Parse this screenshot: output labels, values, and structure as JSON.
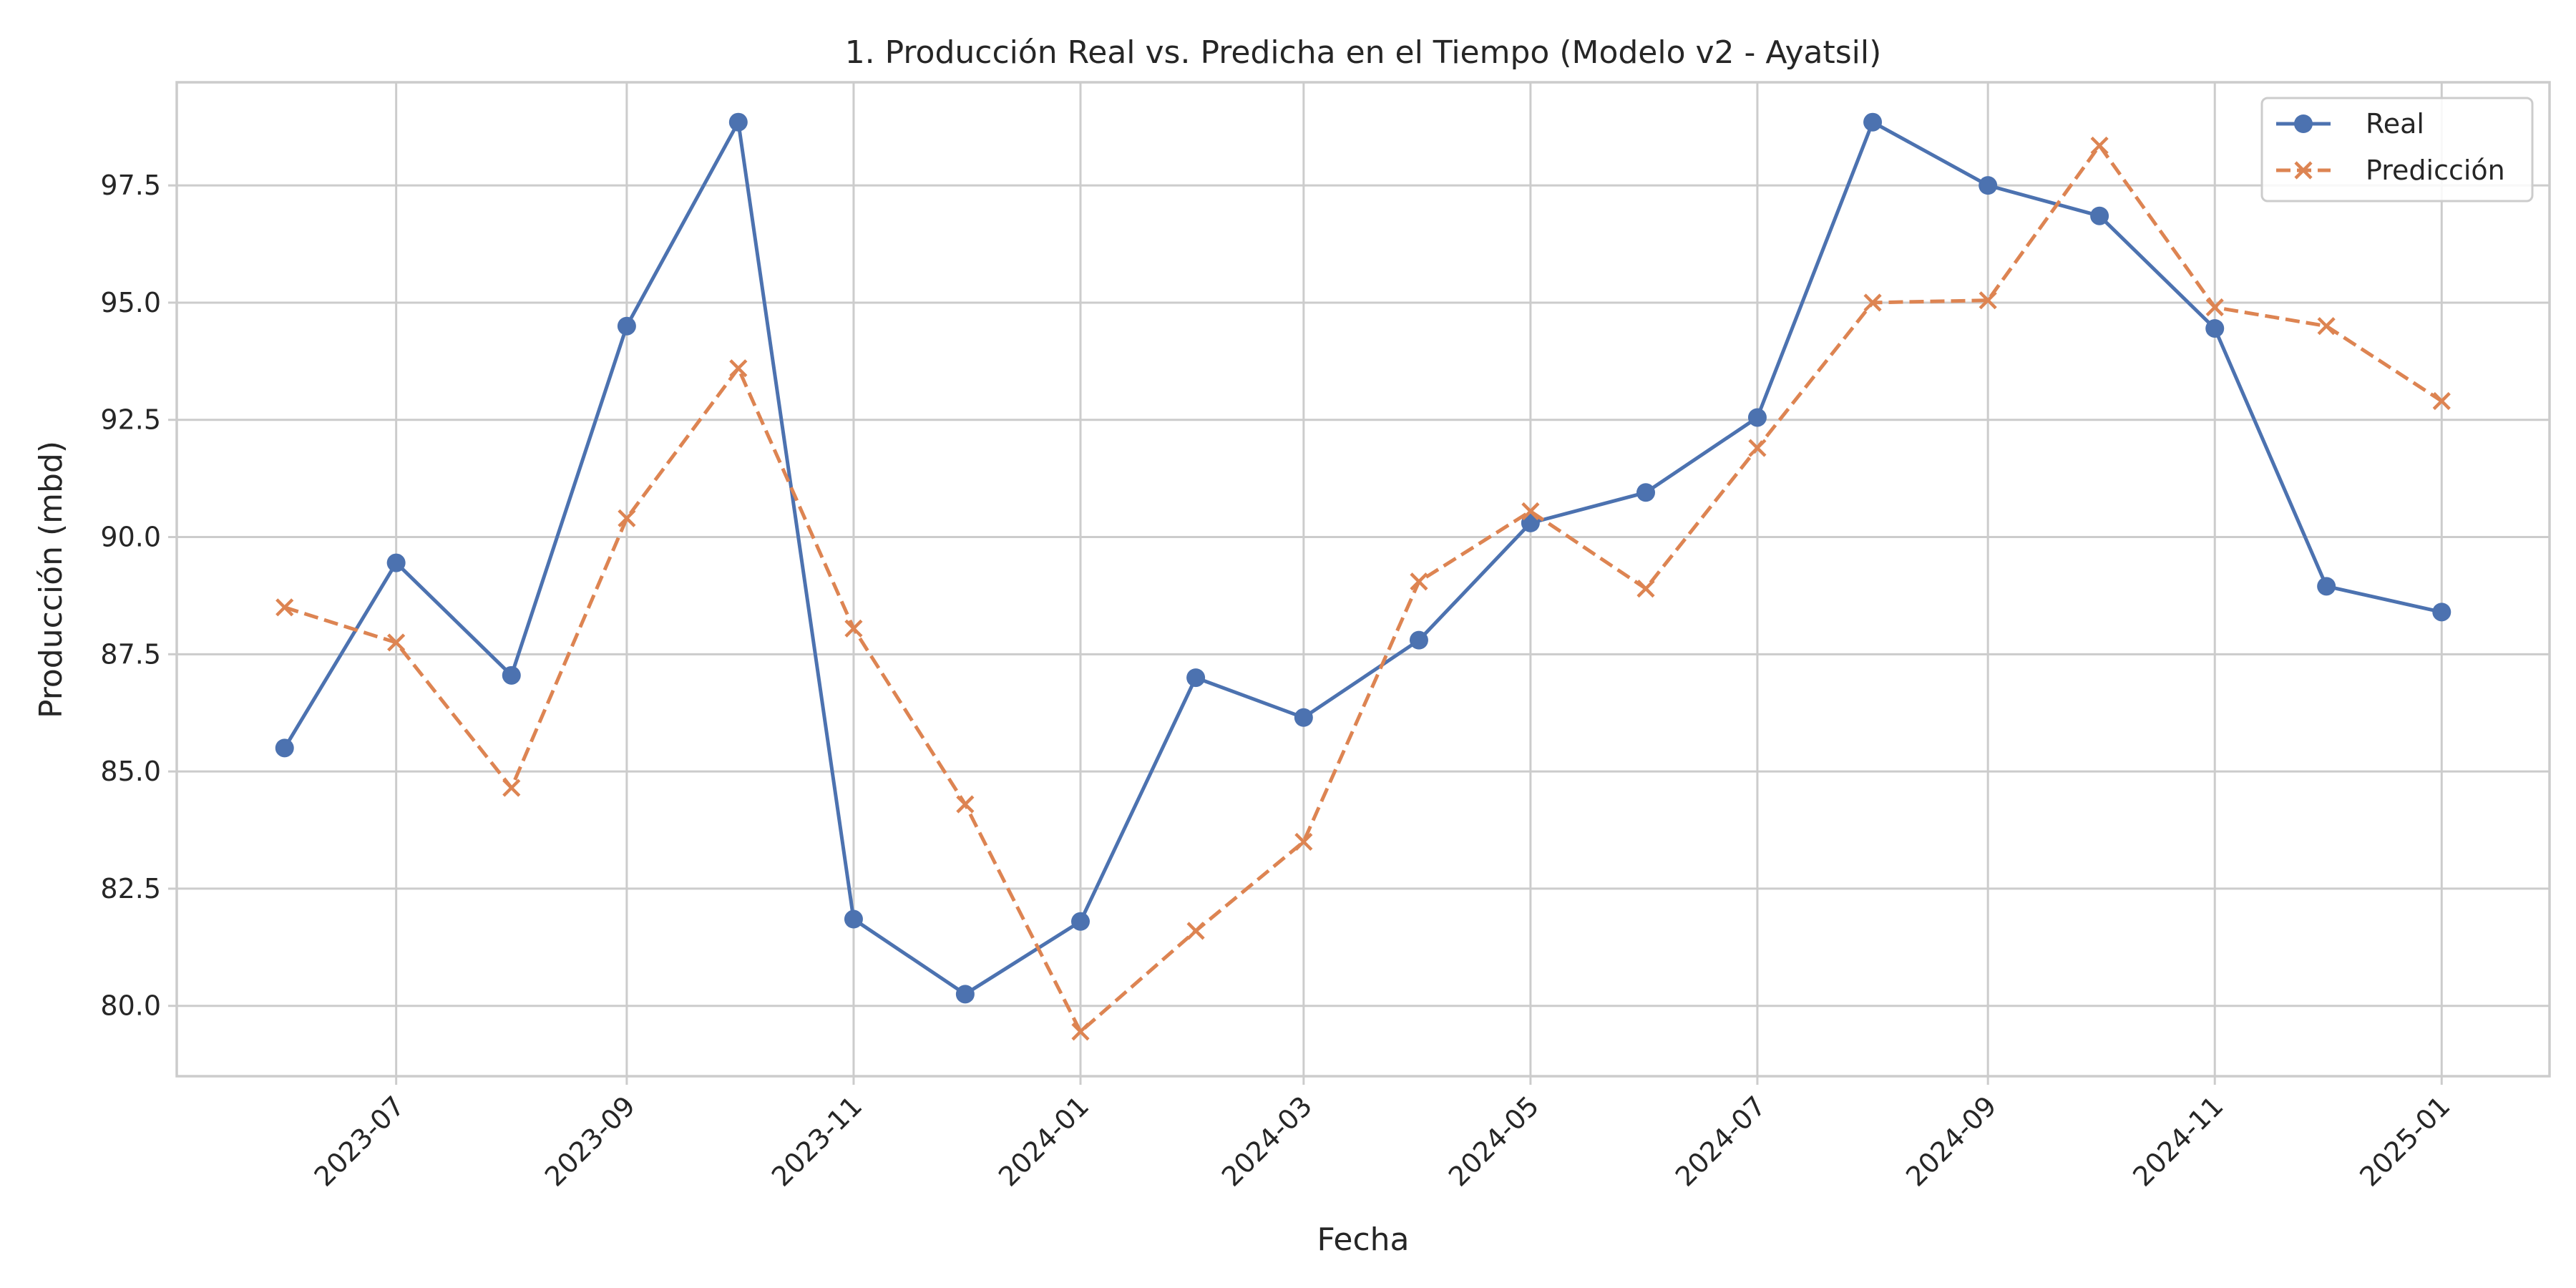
{
  "chart_data": {
    "type": "line",
    "title": "1. Producción Real vs. Predicha en el Tiempo (Modelo v2 - Ayatsil)",
    "xlabel": "Fecha",
    "ylabel": "Producción (mbd)",
    "x": [
      "2023-06-01",
      "2023-07-01",
      "2023-08-01",
      "2023-09-01",
      "2023-10-01",
      "2023-11-01",
      "2023-12-01",
      "2024-01-01",
      "2024-02-01",
      "2024-03-01",
      "2024-04-01",
      "2024-05-01",
      "2024-06-01",
      "2024-07-01",
      "2024-08-01",
      "2024-09-01",
      "2024-10-01",
      "2024-11-01",
      "2024-12-01",
      "2025-01-01"
    ],
    "xlim": [
      "2023-05-03",
      "2025-01-30"
    ],
    "ylim": [
      78.5,
      99.7
    ],
    "x_ticks": [
      "2023-07",
      "2023-09",
      "2023-11",
      "2024-01",
      "2024-03",
      "2024-05",
      "2024-07",
      "2024-09",
      "2024-11",
      "2025-01"
    ],
    "y_ticks": [
      "80.0",
      "82.5",
      "85.0",
      "87.5",
      "90.0",
      "92.5",
      "95.0",
      "97.5"
    ],
    "grid": true,
    "legend_position": "top-right",
    "series": [
      {
        "name": "Real",
        "color": "#4c72b0",
        "marker": "circle",
        "line_style": "solid",
        "values": [
          85.5,
          89.45,
          87.05,
          94.5,
          98.85,
          81.85,
          80.25,
          81.8,
          87.0,
          86.15,
          87.8,
          90.3,
          90.95,
          92.55,
          98.85,
          97.5,
          96.85,
          94.45,
          88.95,
          88.4
        ]
      },
      {
        "name": "Predicción",
        "color": "#dd8452",
        "marker": "x",
        "line_style": "dashed",
        "values": [
          88.5,
          87.75,
          84.65,
          90.4,
          93.6,
          88.05,
          84.3,
          79.45,
          81.6,
          83.5,
          89.05,
          90.55,
          88.9,
          91.9,
          95.0,
          95.05,
          98.35,
          94.9,
          94.5,
          92.9
        ]
      }
    ]
  }
}
